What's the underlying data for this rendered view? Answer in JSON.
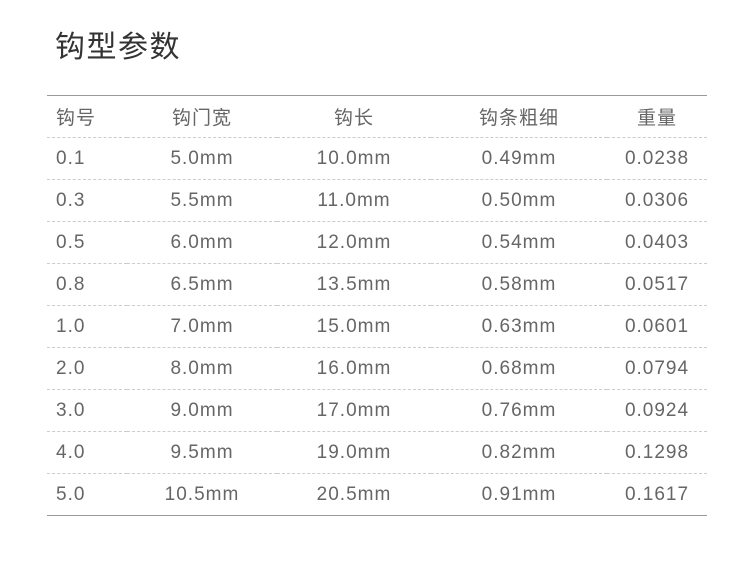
{
  "page": {
    "title": "钩型参数"
  },
  "table": {
    "headers": [
      "钩号",
      "钩门宽",
      "钩长",
      "钩条粗细",
      "重量"
    ],
    "rows": [
      [
        "0.1",
        "5.0mm",
        "10.0mm",
        "0.49mm",
        "0.0238"
      ],
      [
        "0.3",
        "5.5mm",
        "11.0mm",
        "0.50mm",
        "0.0306"
      ],
      [
        "0.5",
        "6.0mm",
        "12.0mm",
        "0.54mm",
        "0.0403"
      ],
      [
        "0.8",
        "6.5mm",
        "13.5mm",
        "0.58mm",
        "0.0517"
      ],
      [
        "1.0",
        "7.0mm",
        "15.0mm",
        "0.63mm",
        "0.0601"
      ],
      [
        "2.0",
        "8.0mm",
        "16.0mm",
        "0.68mm",
        "0.0794"
      ],
      [
        "3.0",
        "9.0mm",
        "17.0mm",
        "0.76mm",
        "0.0924"
      ],
      [
        "4.0",
        "9.5mm",
        "19.0mm",
        "0.82mm",
        "0.1298"
      ],
      [
        "5.0",
        "10.5mm",
        "20.5mm",
        "0.91mm",
        "0.1617"
      ]
    ]
  },
  "colors": {
    "title": "#333333",
    "text": "#666666",
    "solid_border": "#999999",
    "dashed_border": "#cccccc",
    "background": "#ffffff"
  }
}
